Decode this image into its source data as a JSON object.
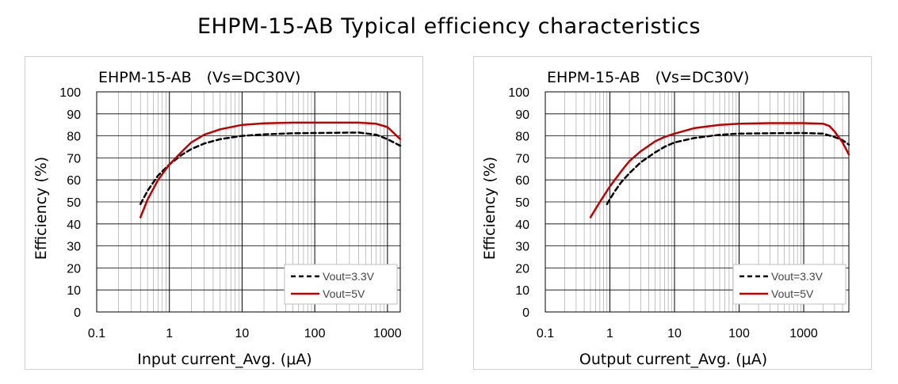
{
  "page": {
    "title": "EHPM-15-AB Typical efficiency characteristics"
  },
  "chart_data": [
    {
      "type": "line",
      "title": "EHPM-15-AB　(Vs=DC30V)",
      "xlabel": "Input current_Avg. (μA)",
      "ylabel": "Efficiency (%)",
      "xscale": "log",
      "xlim": [
        0.1,
        1500
      ],
      "ylim": [
        0,
        100
      ],
      "xticks": [
        "0.1",
        "1",
        "10",
        "100",
        "1000"
      ],
      "yticks": [
        "0",
        "10",
        "20",
        "30",
        "40",
        "50",
        "60",
        "70",
        "80",
        "90",
        "100"
      ],
      "grid": true,
      "legend_position": "bottom-right",
      "series": [
        {
          "name": "Vout=3.3V",
          "color": "#000000",
          "dash": "dashed",
          "x": [
            0.4,
            0.5,
            0.7,
            1,
            1.5,
            2,
            3,
            5,
            10,
            20,
            50,
            100,
            200,
            400,
            700,
            1000,
            1500
          ],
          "y": [
            49,
            55,
            62,
            67,
            71.5,
            74,
            76.5,
            78.5,
            80,
            80.7,
            81.2,
            81.3,
            81.4,
            81.5,
            80.5,
            78.5,
            75.5
          ]
        },
        {
          "name": "Vout=5V",
          "color": "#c00000",
          "dash": "solid",
          "x": [
            0.4,
            0.5,
            0.7,
            1,
            1.5,
            2,
            3,
            5,
            10,
            20,
            50,
            100,
            200,
            400,
            700,
            1000,
            1500
          ],
          "y": [
            43,
            51,
            60,
            67,
            73,
            77,
            80.5,
            83,
            85,
            85.7,
            86,
            86,
            86,
            86,
            85.5,
            84,
            78.5
          ]
        }
      ]
    },
    {
      "type": "line",
      "title": "EHPM-15-AB　(Vs=DC30V)",
      "xlabel": "Output current_Avg. (μA)",
      "ylabel": "Efficiency (%)",
      "xscale": "log",
      "xlim": [
        0.1,
        5000
      ],
      "ylim": [
        0,
        100
      ],
      "xticks": [
        "0.1",
        "1",
        "10",
        "100",
        "1000"
      ],
      "yticks": [
        "0",
        "10",
        "20",
        "30",
        "40",
        "50",
        "60",
        "70",
        "80",
        "90",
        "100"
      ],
      "grid": true,
      "legend_position": "bottom-right",
      "series": [
        {
          "name": "Vout=3.3V",
          "color": "#000000",
          "dash": "dashed",
          "x": [
            0.9,
            1.2,
            1.5,
            2,
            3,
            5,
            7,
            10,
            20,
            50,
            100,
            300,
            1000,
            2000,
            3000,
            4000,
            5000
          ],
          "y": [
            49,
            55,
            59,
            63,
            68,
            72.5,
            75,
            77,
            79,
            80.5,
            81,
            81.2,
            81.3,
            81,
            79.5,
            78,
            76
          ]
        },
        {
          "name": "Vout=5V",
          "color": "#c00000",
          "dash": "solid",
          "x": [
            0.5,
            0.7,
            1,
            1.5,
            2,
            3,
            5,
            7,
            10,
            20,
            50,
            100,
            300,
            1000,
            2000,
            2500,
            3000,
            4000,
            5000
          ],
          "y": [
            43,
            50,
            57,
            64,
            68.5,
            73,
            77.5,
            79.5,
            81,
            83.5,
            85,
            85.5,
            85.8,
            85.8,
            85.5,
            84.5,
            82,
            77,
            71.5
          ]
        }
      ]
    }
  ]
}
